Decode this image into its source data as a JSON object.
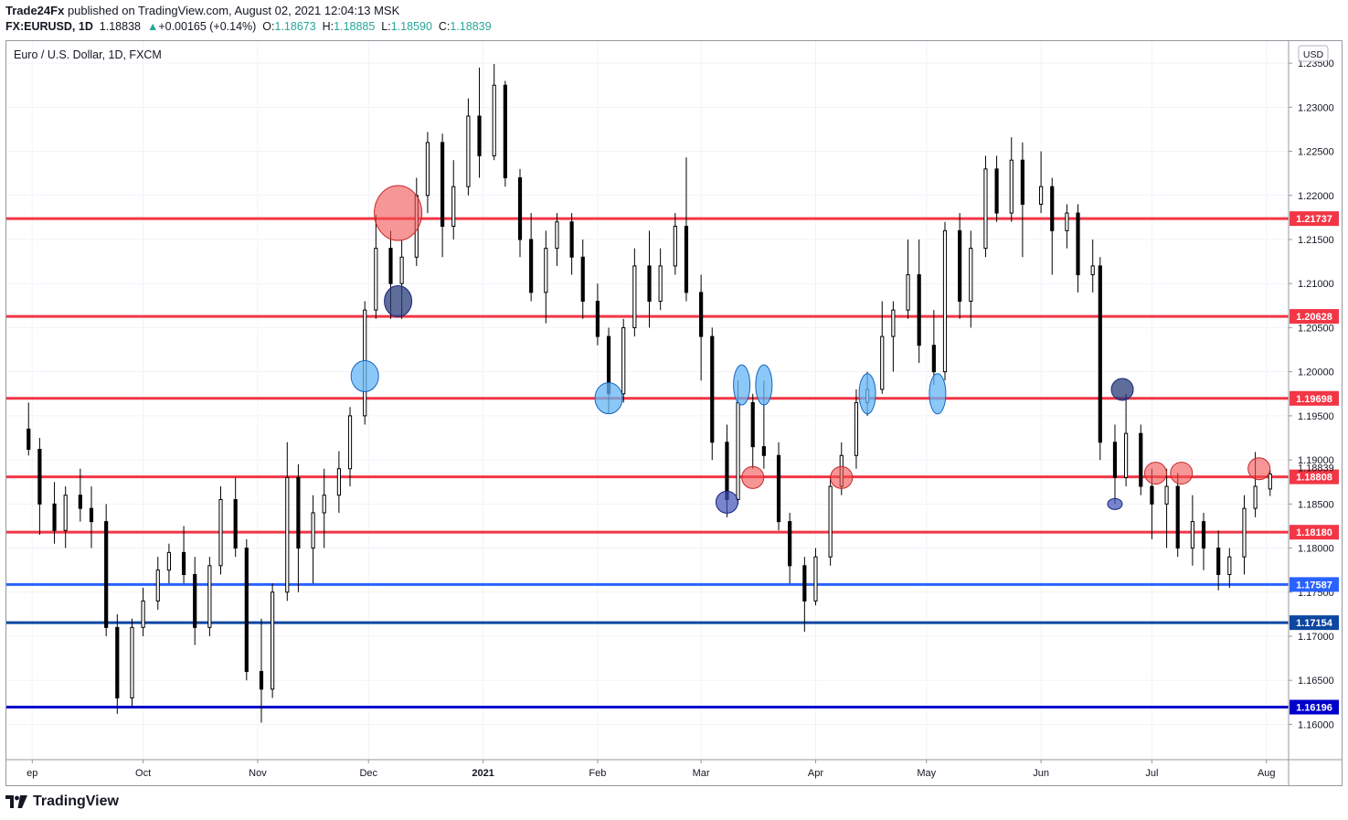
{
  "header": {
    "publisher": "Trade24Fx",
    "published_text": "published on TradingView.com, August 02, 2021 12:04:13 MSK",
    "symbol": "FX:EURUSD, 1D",
    "last": "1.18838",
    "change": "+0.00165 (+0.14%)",
    "o_label": "O:",
    "o": "1.18673",
    "h_label": "H:",
    "h": "1.18885",
    "l_label": "L:",
    "l": "1.18590",
    "c_label": "C:",
    "c": "1.18839"
  },
  "footer": {
    "brand": "TradingView",
    "logo_icon": "tradingview-logo-icon"
  },
  "chart_data": {
    "type": "candlestick",
    "title": "Euro / U.S. Dollar, 1D, FXCM",
    "currency_badge": "USD",
    "ylim": [
      1.156,
      1.2375
    ],
    "y_ticks": [
      "1.16000",
      "1.16500",
      "1.17000",
      "1.17500",
      "1.18000",
      "1.18500",
      "1.19000",
      "1.19500",
      "1.20000",
      "1.20500",
      "1.21000",
      "1.21500",
      "1.22000",
      "1.22500",
      "1.23000",
      "1.23500"
    ],
    "x_ticks": [
      {
        "label": "ep",
        "date": "2020-09-01"
      },
      {
        "label": "Oct",
        "date": "2020-10-01"
      },
      {
        "label": "Nov",
        "date": "2020-11-01"
      },
      {
        "label": "Dec",
        "date": "2020-12-01"
      },
      {
        "label": "2021",
        "date": "2021-01-01",
        "bold": true
      },
      {
        "label": "Feb",
        "date": "2021-02-01"
      },
      {
        "label": "Mar",
        "date": "2021-03-01"
      },
      {
        "label": "Apr",
        "date": "2021-04-01"
      },
      {
        "label": "May",
        "date": "2021-05-01"
      },
      {
        "label": "Jun",
        "date": "2021-06-01"
      },
      {
        "label": "Jul",
        "date": "2021-07-01"
      },
      {
        "label": "Aug",
        "date": "2021-08-01"
      }
    ],
    "last_price": {
      "value": 1.18839,
      "label": "1.18839"
    },
    "horizontal_lines": [
      {
        "value": 1.21737,
        "label": "1.21737",
        "color": "#f23645"
      },
      {
        "value": 1.20628,
        "label": "1.20628",
        "color": "#f23645"
      },
      {
        "value": 1.19698,
        "label": "1.19698",
        "color": "#f23645"
      },
      {
        "value": 1.18808,
        "label": "1.18808",
        "color": "#f23645"
      },
      {
        "value": 1.1818,
        "label": "1.18180",
        "color": "#f23645"
      },
      {
        "value": 1.17587,
        "label": "1.17587",
        "color": "#2962ff"
      },
      {
        "value": 1.17154,
        "label": "1.17154",
        "color": "#0d47a1"
      },
      {
        "value": 1.16196,
        "label": "1.16196",
        "color": "#0000cc"
      }
    ],
    "series": [
      {
        "date": "2020-08-31",
        "o": 1.1935,
        "h": 1.1965,
        "l": 1.1905,
        "c": 1.1912
      },
      {
        "date": "2020-09-03",
        "o": 1.1912,
        "h": 1.1925,
        "l": 1.1815,
        "c": 1.185
      },
      {
        "date": "2020-09-07",
        "o": 1.185,
        "h": 1.1875,
        "l": 1.1805,
        "c": 1.182
      },
      {
        "date": "2020-09-10",
        "o": 1.182,
        "h": 1.187,
        "l": 1.18,
        "c": 1.186
      },
      {
        "date": "2020-09-14",
        "o": 1.186,
        "h": 1.189,
        "l": 1.183,
        "c": 1.1845
      },
      {
        "date": "2020-09-17",
        "o": 1.1845,
        "h": 1.187,
        "l": 1.18,
        "c": 1.183
      },
      {
        "date": "2020-09-21",
        "o": 1.183,
        "h": 1.185,
        "l": 1.17,
        "c": 1.171
      },
      {
        "date": "2020-09-24",
        "o": 1.171,
        "h": 1.1725,
        "l": 1.1612,
        "c": 1.163
      },
      {
        "date": "2020-09-28",
        "o": 1.163,
        "h": 1.172,
        "l": 1.162,
        "c": 1.171
      },
      {
        "date": "2020-10-01",
        "o": 1.171,
        "h": 1.1755,
        "l": 1.17,
        "c": 1.174
      },
      {
        "date": "2020-10-05",
        "o": 1.174,
        "h": 1.179,
        "l": 1.173,
        "c": 1.1775
      },
      {
        "date": "2020-10-08",
        "o": 1.1775,
        "h": 1.1805,
        "l": 1.176,
        "c": 1.1795
      },
      {
        "date": "2020-10-12",
        "o": 1.1795,
        "h": 1.1825,
        "l": 1.176,
        "c": 1.177
      },
      {
        "date": "2020-10-15",
        "o": 1.177,
        "h": 1.179,
        "l": 1.169,
        "c": 1.171
      },
      {
        "date": "2020-10-19",
        "o": 1.171,
        "h": 1.179,
        "l": 1.17,
        "c": 1.178
      },
      {
        "date": "2020-10-22",
        "o": 1.178,
        "h": 1.187,
        "l": 1.177,
        "c": 1.1855
      },
      {
        "date": "2020-10-26",
        "o": 1.1855,
        "h": 1.188,
        "l": 1.179,
        "c": 1.18
      },
      {
        "date": "2020-10-29",
        "o": 1.18,
        "h": 1.181,
        "l": 1.165,
        "c": 1.166
      },
      {
        "date": "2020-11-02",
        "o": 1.166,
        "h": 1.172,
        "l": 1.1602,
        "c": 1.164
      },
      {
        "date": "2020-11-05",
        "o": 1.164,
        "h": 1.176,
        "l": 1.163,
        "c": 1.175
      },
      {
        "date": "2020-11-09",
        "o": 1.175,
        "h": 1.192,
        "l": 1.174,
        "c": 1.188
      },
      {
        "date": "2020-11-12",
        "o": 1.188,
        "h": 1.1895,
        "l": 1.175,
        "c": 1.18
      },
      {
        "date": "2020-11-16",
        "o": 1.18,
        "h": 1.186,
        "l": 1.176,
        "c": 1.184
      },
      {
        "date": "2020-11-19",
        "o": 1.184,
        "h": 1.189,
        "l": 1.18,
        "c": 1.186
      },
      {
        "date": "2020-11-23",
        "o": 1.186,
        "h": 1.191,
        "l": 1.184,
        "c": 1.189
      },
      {
        "date": "2020-11-26",
        "o": 1.189,
        "h": 1.196,
        "l": 1.187,
        "c": 1.195
      },
      {
        "date": "2020-11-30",
        "o": 1.195,
        "h": 1.208,
        "l": 1.194,
        "c": 1.207
      },
      {
        "date": "2020-12-03",
        "o": 1.207,
        "h": 1.2178,
        "l": 1.206,
        "c": 1.214
      },
      {
        "date": "2020-12-07",
        "o": 1.214,
        "h": 1.216,
        "l": 1.206,
        "c": 1.21
      },
      {
        "date": "2020-12-10",
        "o": 1.21,
        "h": 1.215,
        "l": 1.206,
        "c": 1.213
      },
      {
        "date": "2020-12-14",
        "o": 1.213,
        "h": 1.222,
        "l": 1.212,
        "c": 1.22
      },
      {
        "date": "2020-12-17",
        "o": 1.22,
        "h": 1.2272,
        "l": 1.218,
        "c": 1.226
      },
      {
        "date": "2020-12-21",
        "o": 1.226,
        "h": 1.227,
        "l": 1.213,
        "c": 1.2165
      },
      {
        "date": "2020-12-24",
        "o": 1.2165,
        "h": 1.224,
        "l": 1.215,
        "c": 1.221
      },
      {
        "date": "2020-12-28",
        "o": 1.221,
        "h": 1.231,
        "l": 1.22,
        "c": 1.229
      },
      {
        "date": "2020-12-31",
        "o": 1.229,
        "h": 1.2345,
        "l": 1.222,
        "c": 1.2245
      },
      {
        "date": "2021-01-04",
        "o": 1.2245,
        "h": 1.2349,
        "l": 1.224,
        "c": 1.2325
      },
      {
        "date": "2021-01-07",
        "o": 1.2325,
        "h": 1.233,
        "l": 1.221,
        "c": 1.222
      },
      {
        "date": "2021-01-11",
        "o": 1.222,
        "h": 1.223,
        "l": 1.213,
        "c": 1.215
      },
      {
        "date": "2021-01-14",
        "o": 1.215,
        "h": 1.218,
        "l": 1.208,
        "c": 1.209
      },
      {
        "date": "2021-01-18",
        "o": 1.209,
        "h": 1.216,
        "l": 1.2055,
        "c": 1.214
      },
      {
        "date": "2021-01-21",
        "o": 1.214,
        "h": 1.218,
        "l": 1.212,
        "c": 1.217
      },
      {
        "date": "2021-01-25",
        "o": 1.217,
        "h": 1.218,
        "l": 1.211,
        "c": 1.213
      },
      {
        "date": "2021-01-28",
        "o": 1.213,
        "h": 1.215,
        "l": 1.206,
        "c": 1.208
      },
      {
        "date": "2021-02-01",
        "o": 1.208,
        "h": 1.21,
        "l": 1.203,
        "c": 1.204
      },
      {
        "date": "2021-02-04",
        "o": 1.204,
        "h": 1.205,
        "l": 1.1952,
        "c": 1.1975
      },
      {
        "date": "2021-02-08",
        "o": 1.1975,
        "h": 1.206,
        "l": 1.1965,
        "c": 1.205
      },
      {
        "date": "2021-02-11",
        "o": 1.205,
        "h": 1.214,
        "l": 1.204,
        "c": 1.212
      },
      {
        "date": "2021-02-15",
        "o": 1.212,
        "h": 1.216,
        "l": 1.205,
        "c": 1.208
      },
      {
        "date": "2021-02-18",
        "o": 1.208,
        "h": 1.214,
        "l": 1.207,
        "c": 1.212
      },
      {
        "date": "2021-02-22",
        "o": 1.212,
        "h": 1.218,
        "l": 1.211,
        "c": 1.2165
      },
      {
        "date": "2021-02-25",
        "o": 1.2165,
        "h": 1.2243,
        "l": 1.208,
        "c": 1.209
      },
      {
        "date": "2021-03-01",
        "o": 1.209,
        "h": 1.211,
        "l": 1.199,
        "c": 1.204
      },
      {
        "date": "2021-03-04",
        "o": 1.204,
        "h": 1.205,
        "l": 1.19,
        "c": 1.192
      },
      {
        "date": "2021-03-08",
        "o": 1.192,
        "h": 1.194,
        "l": 1.1835,
        "c": 1.1855
      },
      {
        "date": "2021-03-11",
        "o": 1.1855,
        "h": 1.199,
        "l": 1.185,
        "c": 1.1965
      },
      {
        "date": "2021-03-15",
        "o": 1.1965,
        "h": 1.1975,
        "l": 1.189,
        "c": 1.1915
      },
      {
        "date": "2021-03-18",
        "o": 1.1915,
        "h": 1.199,
        "l": 1.189,
        "c": 1.1905
      },
      {
        "date": "2021-03-22",
        "o": 1.1905,
        "h": 1.192,
        "l": 1.182,
        "c": 1.183
      },
      {
        "date": "2021-03-25",
        "o": 1.183,
        "h": 1.184,
        "l": 1.176,
        "c": 1.178
      },
      {
        "date": "2021-03-29",
        "o": 1.178,
        "h": 1.179,
        "l": 1.1705,
        "c": 1.174
      },
      {
        "date": "2021-04-01",
        "o": 1.174,
        "h": 1.18,
        "l": 1.1735,
        "c": 1.179
      },
      {
        "date": "2021-04-05",
        "o": 1.179,
        "h": 1.188,
        "l": 1.178,
        "c": 1.187
      },
      {
        "date": "2021-04-08",
        "o": 1.187,
        "h": 1.192,
        "l": 1.186,
        "c": 1.1905
      },
      {
        "date": "2021-04-12",
        "o": 1.1905,
        "h": 1.198,
        "l": 1.189,
        "c": 1.1965
      },
      {
        "date": "2021-04-15",
        "o": 1.1965,
        "h": 1.2,
        "l": 1.195,
        "c": 1.198
      },
      {
        "date": "2021-04-19",
        "o": 1.198,
        "h": 1.208,
        "l": 1.1975,
        "c": 1.204
      },
      {
        "date": "2021-04-22",
        "o": 1.204,
        "h": 1.208,
        "l": 1.2,
        "c": 1.207
      },
      {
        "date": "2021-04-26",
        "o": 1.207,
        "h": 1.215,
        "l": 1.206,
        "c": 1.211
      },
      {
        "date": "2021-04-29",
        "o": 1.211,
        "h": 1.215,
        "l": 1.201,
        "c": 1.203
      },
      {
        "date": "2021-05-03",
        "o": 1.203,
        "h": 1.207,
        "l": 1.1985,
        "c": 1.2
      },
      {
        "date": "2021-05-06",
        "o": 1.2,
        "h": 1.217,
        "l": 1.199,
        "c": 1.216
      },
      {
        "date": "2021-05-10",
        "o": 1.216,
        "h": 1.218,
        "l": 1.206,
        "c": 1.208
      },
      {
        "date": "2021-05-13",
        "o": 1.208,
        "h": 1.216,
        "l": 1.205,
        "c": 1.214
      },
      {
        "date": "2021-05-17",
        "o": 1.214,
        "h": 1.2245,
        "l": 1.213,
        "c": 1.223
      },
      {
        "date": "2021-05-20",
        "o": 1.223,
        "h": 1.2245,
        "l": 1.217,
        "c": 1.218
      },
      {
        "date": "2021-05-24",
        "o": 1.218,
        "h": 1.2266,
        "l": 1.217,
        "c": 1.224
      },
      {
        "date": "2021-05-27",
        "o": 1.224,
        "h": 1.226,
        "l": 1.213,
        "c": 1.219
      },
      {
        "date": "2021-06-01",
        "o": 1.219,
        "h": 1.225,
        "l": 1.218,
        "c": 1.221
      },
      {
        "date": "2021-06-04",
        "o": 1.221,
        "h": 1.222,
        "l": 1.211,
        "c": 1.216
      },
      {
        "date": "2021-06-08",
        "o": 1.216,
        "h": 1.219,
        "l": 1.214,
        "c": 1.218
      },
      {
        "date": "2021-06-11",
        "o": 1.218,
        "h": 1.219,
        "l": 1.209,
        "c": 1.211
      },
      {
        "date": "2021-06-15",
        "o": 1.211,
        "h": 1.215,
        "l": 1.209,
        "c": 1.212
      },
      {
        "date": "2021-06-17",
        "o": 1.212,
        "h": 1.213,
        "l": 1.19,
        "c": 1.192
      },
      {
        "date": "2021-06-21",
        "o": 1.192,
        "h": 1.194,
        "l": 1.185,
        "c": 1.188
      },
      {
        "date": "2021-06-24",
        "o": 1.188,
        "h": 1.1975,
        "l": 1.187,
        "c": 1.193
      },
      {
        "date": "2021-06-28",
        "o": 1.193,
        "h": 1.194,
        "l": 1.186,
        "c": 1.187
      },
      {
        "date": "2021-07-01",
        "o": 1.187,
        "h": 1.189,
        "l": 1.181,
        "c": 1.185
      },
      {
        "date": "2021-07-05",
        "o": 1.185,
        "h": 1.189,
        "l": 1.18,
        "c": 1.187
      },
      {
        "date": "2021-07-08",
        "o": 1.187,
        "h": 1.1885,
        "l": 1.179,
        "c": 1.18
      },
      {
        "date": "2021-07-12",
        "o": 1.18,
        "h": 1.186,
        "l": 1.178,
        "c": 1.183
      },
      {
        "date": "2021-07-15",
        "o": 1.183,
        "h": 1.184,
        "l": 1.1775,
        "c": 1.18
      },
      {
        "date": "2021-07-19",
        "o": 1.18,
        "h": 1.182,
        "l": 1.1752,
        "c": 1.177
      },
      {
        "date": "2021-07-22",
        "o": 1.177,
        "h": 1.18,
        "l": 1.1755,
        "c": 1.179
      },
      {
        "date": "2021-07-26",
        "o": 1.179,
        "h": 1.186,
        "l": 1.177,
        "c": 1.1845
      },
      {
        "date": "2021-07-29",
        "o": 1.1845,
        "h": 1.1909,
        "l": 1.1835,
        "c": 1.187
      },
      {
        "date": "2021-08-02",
        "o": 1.1867,
        "h": 1.1889,
        "l": 1.1859,
        "c": 1.1884
      }
    ],
    "marker_circles": [
      {
        "date": "2020-12-09",
        "value": 1.218,
        "size": "large",
        "color": "red"
      },
      {
        "date": "2020-12-09",
        "value": 1.208,
        "size": "medium",
        "color": "navy"
      },
      {
        "date": "2020-11-30",
        "value": 1.1995,
        "size": "medium",
        "color": "lightblue"
      },
      {
        "date": "2021-02-04",
        "value": 1.197,
        "size": "medium",
        "color": "lightblue"
      },
      {
        "date": "2021-03-08",
        "value": 1.1852,
        "size": "small",
        "color": "blue"
      },
      {
        "date": "2021-03-12",
        "value": 1.1985,
        "size": "tall",
        "color": "lightblue"
      },
      {
        "date": "2021-03-15",
        "value": 1.188,
        "size": "small",
        "color": "red"
      },
      {
        "date": "2021-03-18",
        "value": 1.1985,
        "size": "tall",
        "color": "lightblue"
      },
      {
        "date": "2021-04-08",
        "value": 1.188,
        "size": "small",
        "color": "red"
      },
      {
        "date": "2021-04-15",
        "value": 1.1975,
        "size": "tall",
        "color": "lightblue"
      },
      {
        "date": "2021-05-04",
        "value": 1.1975,
        "size": "tall",
        "color": "lightblue"
      },
      {
        "date": "2021-06-21",
        "value": 1.185,
        "size": "tiny",
        "color": "blue"
      },
      {
        "date": "2021-06-23",
        "value": 1.198,
        "size": "small",
        "color": "navy"
      },
      {
        "date": "2021-07-02",
        "value": 1.1885,
        "size": "small",
        "color": "red"
      },
      {
        "date": "2021-07-09",
        "value": 1.1885,
        "size": "small",
        "color": "red"
      },
      {
        "date": "2021-07-30",
        "value": 1.189,
        "size": "small",
        "color": "red"
      }
    ]
  }
}
